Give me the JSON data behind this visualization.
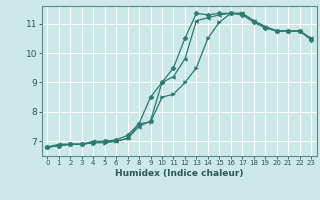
{
  "xlabel": "Humidex (Indice chaleur)",
  "bg_color": "#cce8e8",
  "grid_color": "#ffffff",
  "line_color": "#2d7a6e",
  "xlim": [
    -0.5,
    23.5
  ],
  "ylim": [
    6.5,
    11.6
  ],
  "yticks": [
    7,
    8,
    9,
    10,
    11
  ],
  "xticks": [
    0,
    1,
    2,
    3,
    4,
    5,
    6,
    7,
    8,
    9,
    10,
    11,
    12,
    13,
    14,
    15,
    16,
    17,
    18,
    19,
    20,
    21,
    22,
    23
  ],
  "line1_x": [
    0,
    1,
    2,
    3,
    4,
    5,
    6,
    7,
    8,
    9,
    10,
    11,
    12,
    13,
    14,
    15,
    16,
    17,
    18,
    19,
    20,
    21,
    22,
    23
  ],
  "line1_y": [
    6.8,
    6.85,
    6.9,
    6.9,
    6.95,
    6.95,
    7.0,
    7.1,
    7.6,
    7.65,
    8.5,
    8.6,
    9.0,
    9.5,
    10.5,
    11.05,
    11.35,
    11.35,
    11.1,
    10.9,
    10.75,
    10.75,
    10.75,
    10.5
  ],
  "line2_x": [
    0,
    1,
    2,
    3,
    4,
    5,
    6,
    7,
    8,
    9,
    10,
    11,
    12,
    13,
    14,
    15,
    16,
    17,
    18,
    19,
    20,
    21,
    22,
    23
  ],
  "line2_y": [
    6.8,
    6.85,
    6.9,
    6.9,
    6.95,
    7.0,
    7.05,
    7.2,
    7.6,
    8.5,
    9.0,
    9.5,
    10.5,
    11.35,
    11.3,
    11.35,
    11.35,
    11.3,
    11.05,
    10.85,
    10.75,
    10.75,
    10.75,
    10.45
  ],
  "line3_x": [
    0,
    1,
    2,
    3,
    4,
    5,
    6,
    7,
    8,
    9,
    10,
    11,
    12,
    13,
    14,
    15,
    16,
    17,
    18,
    19,
    20,
    21,
    22,
    23
  ],
  "line3_y": [
    6.8,
    6.9,
    6.9,
    6.9,
    7.0,
    7.0,
    7.0,
    7.1,
    7.5,
    7.7,
    9.0,
    9.2,
    9.8,
    11.1,
    11.2,
    11.3,
    11.35,
    11.35,
    11.1,
    10.9,
    10.75,
    10.75,
    10.75,
    10.5
  ]
}
